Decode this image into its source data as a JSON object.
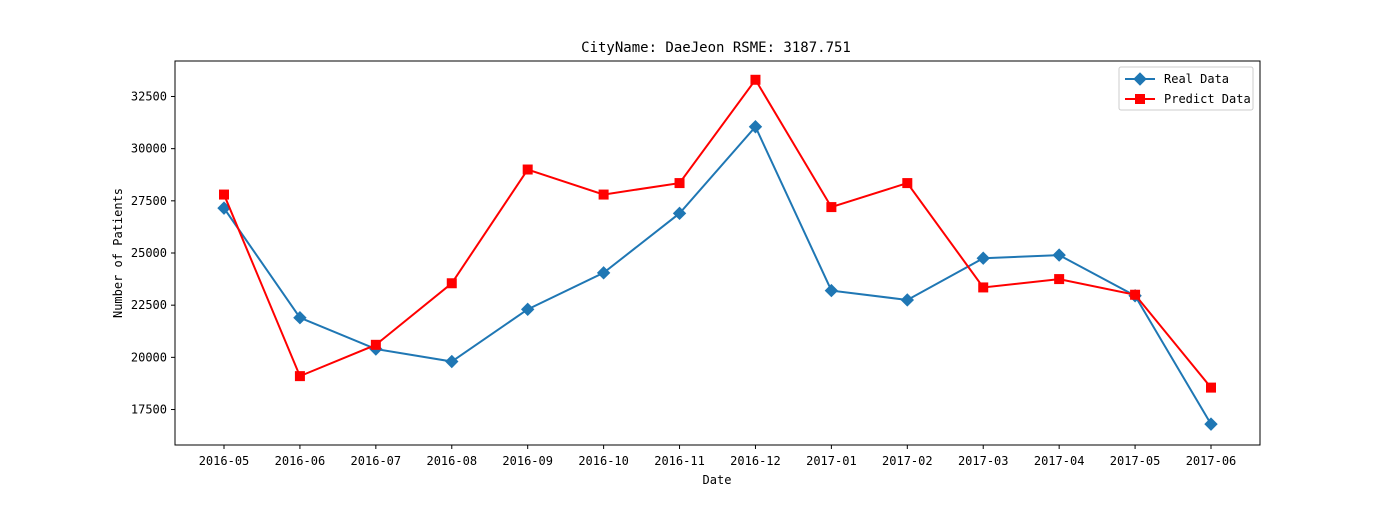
{
  "chart_data": {
    "type": "line",
    "title": "CityName: DaeJeon  RSME: 3187.751",
    "xlabel": "Date",
    "ylabel": "Number of Patients",
    "categories": [
      "2016-05",
      "2016-06",
      "2016-07",
      "2016-08",
      "2016-09",
      "2016-10",
      "2016-11",
      "2016-12",
      "2017-01",
      "2017-02",
      "2017-03",
      "2017-04",
      "2017-05",
      "2017-06"
    ],
    "ylim": [
      15800,
      34200
    ],
    "yticks": [
      17500,
      20000,
      22500,
      25000,
      27500,
      30000,
      32500
    ],
    "ytick_labels": [
      "17500",
      "20000",
      "22500",
      "25000",
      "27500",
      "30000",
      "32500"
    ],
    "grid": false,
    "legend_position": "top-right",
    "series": [
      {
        "name": "Real Data",
        "color": "#1f77b4",
        "marker": "diamond",
        "values": [
          27150,
          21900,
          20400,
          19800,
          22300,
          24050,
          26900,
          31050,
          23200,
          22750,
          24750,
          24900,
          22950,
          16800
        ]
      },
      {
        "name": "Predict Data",
        "color": "#ff0000",
        "marker": "square",
        "values": [
          27800,
          19100,
          20600,
          23550,
          29000,
          27800,
          28350,
          33300,
          27200,
          28350,
          23350,
          23750,
          23000,
          18550
        ]
      }
    ]
  }
}
